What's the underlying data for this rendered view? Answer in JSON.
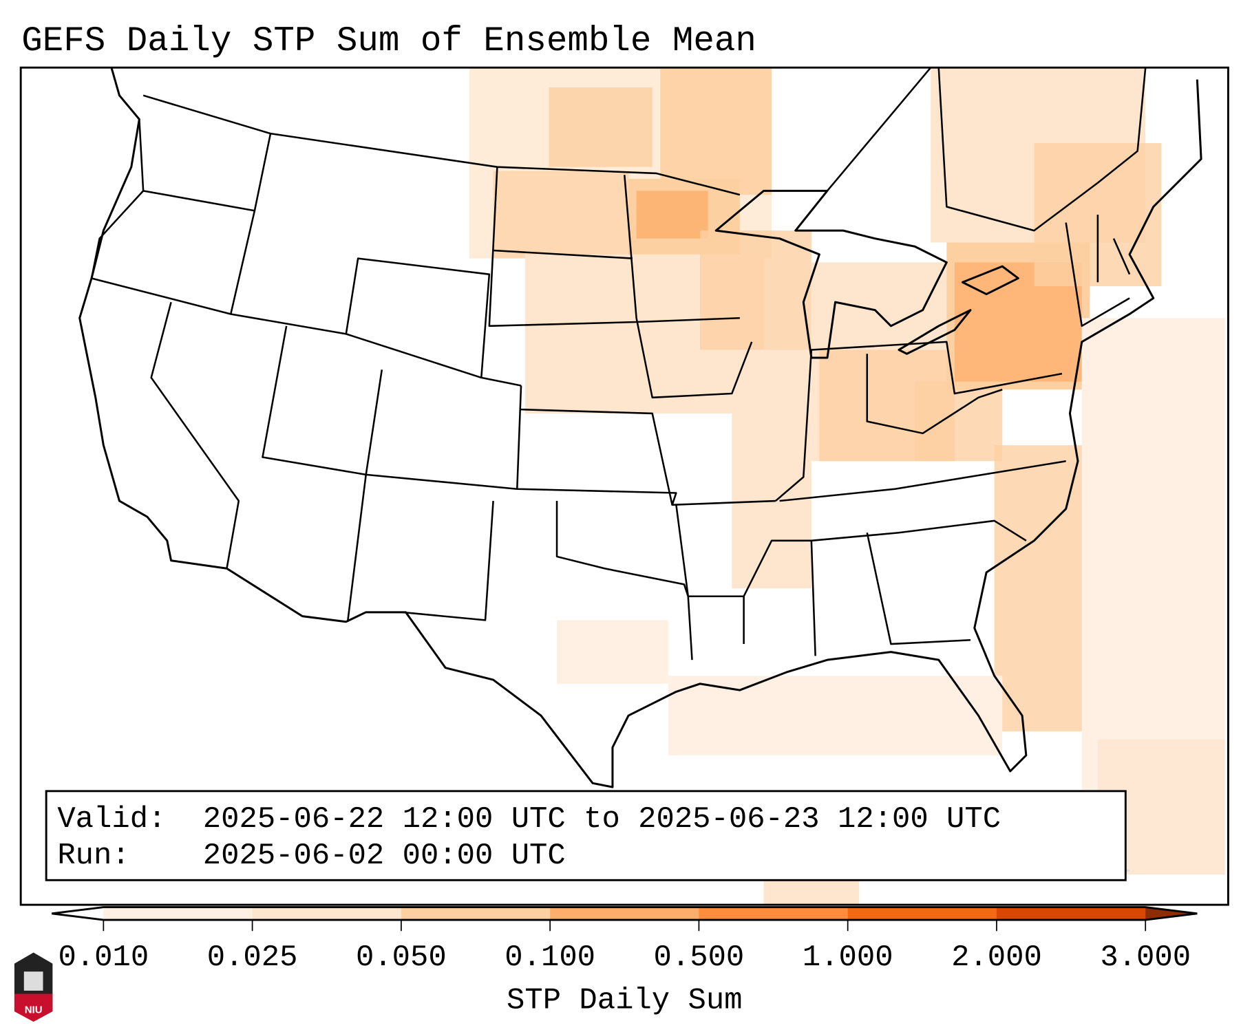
{
  "title": "GEFS Daily STP Sum of Ensemble Mean",
  "info_box": {
    "valid_label": "Valid:",
    "valid_value": "2025-06-22 12:00 UTC to 2025-06-23 12:00 UTC",
    "run_label": "Run:",
    "run_value": "2025-06-02 00:00 UTC"
  },
  "colorbar": {
    "label": "STP Daily Sum",
    "ticks": [
      "0.010",
      "0.025",
      "0.050",
      "0.100",
      "0.500",
      "1.000",
      "2.000",
      "3.000"
    ],
    "colors": [
      "#fff0e3",
      "#fee6ce",
      "#fdd0a2",
      "#fdae6b",
      "#fd8d3c",
      "#f16913",
      "#d94801"
    ],
    "extend_min_color": "#ffffff",
    "extend_max_color": "#8c2d04"
  },
  "logo": {
    "text": "NIU"
  }
}
